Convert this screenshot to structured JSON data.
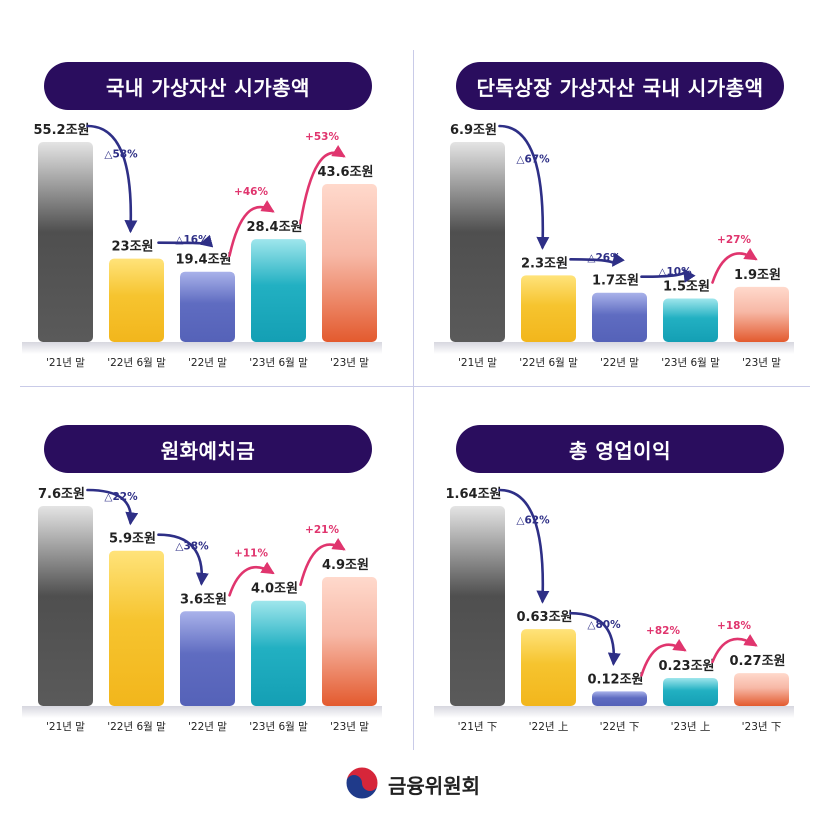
{
  "footer": {
    "org_name": "금융위원회",
    "logo_icon": "taegeuk-logo-icon"
  },
  "colors": {
    "pill_bg": "#2a0d5e",
    "decrease_arrow": "#2e2f86",
    "increase_arrow": "#e0356e",
    "bar_gray": "#8e8e8e",
    "bar_yellow": "#f5c230",
    "bar_purple": "#6a78c6",
    "bar_teal": "#27b5c6",
    "bar_salmon": "#ef8e70"
  },
  "chart_data": [
    {
      "type": "bar",
      "title": "국내 가상자산 시가총액",
      "categories": [
        "'21년 말",
        "'22년 6월 말",
        "'22년 말",
        "'23년 6월 말",
        "'23년 말"
      ],
      "values": [
        55.2,
        23,
        19.4,
        28.4,
        43.6
      ],
      "value_labels": [
        "55.2조원",
        "23조원",
        "19.4조원",
        "28.4조원",
        "43.6조원"
      ],
      "changes": [
        {
          "from": 0,
          "to": 1,
          "label": "△58%",
          "direction": "down"
        },
        {
          "from": 1,
          "to": 2,
          "label": "△16%",
          "direction": "down"
        },
        {
          "from": 2,
          "to": 3,
          "label": "+46%",
          "direction": "up"
        },
        {
          "from": 3,
          "to": 4,
          "label": "+53%",
          "direction": "up"
        }
      ],
      "ylim": [
        0,
        55.2
      ]
    },
    {
      "type": "bar",
      "title": "단독상장 가상자산 국내 시가총액",
      "categories": [
        "'21년 말",
        "'22년 6월 말",
        "'22년 말",
        "'23년 6월 말",
        "'23년 말"
      ],
      "values": [
        6.9,
        2.3,
        1.7,
        1.5,
        1.9
      ],
      "value_labels": [
        "6.9조원",
        "2.3조원",
        "1.7조원",
        "1.5조원",
        "1.9조원"
      ],
      "changes": [
        {
          "from": 0,
          "to": 1,
          "label": "△67%",
          "direction": "down"
        },
        {
          "from": 1,
          "to": 2,
          "label": "△26%",
          "direction": "down"
        },
        {
          "from": 2,
          "to": 3,
          "label": "△10%",
          "direction": "down"
        },
        {
          "from": 3,
          "to": 4,
          "label": "+27%",
          "direction": "up"
        }
      ],
      "ylim": [
        0,
        6.9
      ]
    },
    {
      "type": "bar",
      "title": "원화예치금",
      "categories": [
        "'21년 말",
        "'22년 6월 말",
        "'22년 말",
        "'23년 6월 말",
        "'23년 말"
      ],
      "values": [
        7.6,
        5.9,
        3.6,
        4.0,
        4.9
      ],
      "value_labels": [
        "7.6조원",
        "5.9조원",
        "3.6조원",
        "4.0조원",
        "4.9조원"
      ],
      "changes": [
        {
          "from": 0,
          "to": 1,
          "label": "△22%",
          "direction": "down"
        },
        {
          "from": 1,
          "to": 2,
          "label": "△38%",
          "direction": "down"
        },
        {
          "from": 2,
          "to": 3,
          "label": "+11%",
          "direction": "up"
        },
        {
          "from": 3,
          "to": 4,
          "label": "+21%",
          "direction": "up"
        }
      ],
      "ylim": [
        0,
        7.6
      ]
    },
    {
      "type": "bar",
      "title": "총 영업이익",
      "categories": [
        "'21년 下",
        "'22년 上",
        "'22년 下",
        "'23년 上",
        "'23년 下"
      ],
      "values": [
        1.64,
        0.63,
        0.12,
        0.23,
        0.27
      ],
      "value_labels": [
        "1.64조원",
        "0.63조원",
        "0.12조원",
        "0.23조원",
        "0.27조원"
      ],
      "changes": [
        {
          "from": 0,
          "to": 1,
          "label": "△62%",
          "direction": "down"
        },
        {
          "from": 1,
          "to": 2,
          "label": "△80%",
          "direction": "down"
        },
        {
          "from": 2,
          "to": 3,
          "label": "+82%",
          "direction": "up"
        },
        {
          "from": 3,
          "to": 4,
          "label": "+18%",
          "direction": "up"
        }
      ],
      "ylim": [
        0,
        1.64
      ]
    }
  ]
}
